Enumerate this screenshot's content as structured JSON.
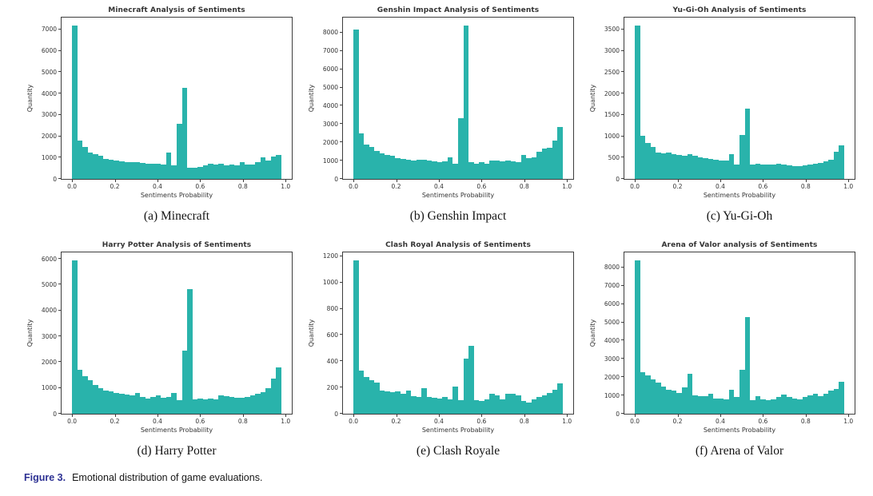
{
  "figure": {
    "caption_label": "Figure 3.",
    "caption_text": "Emotional distribution of game evaluations."
  },
  "colors": {
    "bar": "#29b3ab",
    "spine": "#3d3d3d",
    "caption_label": "#2d3193"
  },
  "chart_data": [
    {
      "type": "bar",
      "title": "Minecraft Analysis of Sentiments",
      "xlabel": "Sentiments Probability",
      "ylabel": "Quantity",
      "caption": "(a) Minecraft",
      "xticks": [
        0.0,
        0.2,
        0.4,
        0.6,
        0.8,
        1.0
      ],
      "yticks": [
        0,
        1000,
        2000,
        3000,
        4000,
        5000,
        6000,
        7000
      ],
      "axis_top": 7560,
      "bin_start": 0.0,
      "bin_width": 0.0245,
      "values": [
        7200,
        1800,
        1500,
        1250,
        1150,
        1100,
        950,
        900,
        850,
        820,
        800,
        780,
        800,
        760,
        720,
        700,
        720,
        680,
        1220,
        620,
        2580,
        4260,
        540,
        520,
        560,
        650,
        700,
        680,
        700,
        620,
        660,
        630,
        800,
        660,
        660,
        800,
        1000,
        860,
        1060,
        1140
      ]
    },
    {
      "type": "bar",
      "title": "Genshin Impact Analysis of Sentiments",
      "xlabel": "Sentiments Probability",
      "ylabel": "Quantity",
      "caption": "(b) Genshin Impact",
      "xticks": [
        0.0,
        0.2,
        0.4,
        0.6,
        0.8,
        1.0
      ],
      "yticks": [
        0,
        1000,
        2000,
        3000,
        4000,
        5000,
        6000,
        7000,
        8000
      ],
      "axis_top": 8820,
      "bin_start": 0.0,
      "bin_width": 0.0245,
      "values": [
        8150,
        2500,
        1900,
        1750,
        1550,
        1400,
        1300,
        1250,
        1150,
        1100,
        1050,
        1000,
        1050,
        1050,
        1000,
        950,
        900,
        950,
        1200,
        850,
        3300,
        8400,
        900,
        850,
        900,
        850,
        1000,
        1000,
        950,
        1000,
        950,
        900,
        1300,
        1150,
        1200,
        1500,
        1650,
        1700,
        2100,
        2850
      ]
    },
    {
      "type": "bar",
      "title": "Yu-Gi-Oh Analysis of Sentiments",
      "xlabel": "Sentiments Probability",
      "ylabel": "Quantity",
      "caption": "(c) Yu-Gi-Oh",
      "xticks": [
        0.0,
        0.2,
        0.4,
        0.6,
        0.8,
        1.0
      ],
      "yticks": [
        0,
        500,
        1000,
        1500,
        2000,
        2500,
        3000,
        3500
      ],
      "axis_top": 3780,
      "bin_start": 0.0,
      "bin_width": 0.0245,
      "values": [
        3600,
        1020,
        850,
        750,
        620,
        600,
        620,
        580,
        560,
        550,
        580,
        540,
        500,
        480,
        460,
        450,
        430,
        440,
        580,
        330,
        1030,
        1650,
        330,
        350,
        330,
        340,
        330,
        360,
        330,
        310,
        300,
        300,
        310,
        340,
        350,
        380,
        420,
        450,
        640,
        780
      ]
    },
    {
      "type": "bar",
      "title": "Harry Potter Analysis of Sentiments",
      "xlabel": "Sentiments Probability",
      "ylabel": "Quantity",
      "caption": "(d) Harry Potter",
      "xticks": [
        0.0,
        0.2,
        0.4,
        0.6,
        0.8,
        1.0
      ],
      "yticks": [
        0,
        1000,
        2000,
        3000,
        4000,
        5000,
        6000
      ],
      "axis_top": 6250,
      "bin_start": 0.0,
      "bin_width": 0.0245,
      "values": [
        5950,
        1700,
        1450,
        1300,
        1100,
        1000,
        900,
        870,
        820,
        760,
        730,
        700,
        820,
        640,
        600,
        660,
        700,
        620,
        640,
        820,
        520,
        2430,
        4820,
        560,
        580,
        560,
        580,
        560,
        720,
        680,
        640,
        620,
        620,
        660,
        700,
        780,
        850,
        1000,
        1350,
        1780
      ]
    },
    {
      "type": "bar",
      "title": "Clash Royal Analysis of Sentiments",
      "xlabel": "Sentiments Probability",
      "ylabel": "Quantity",
      "caption": "(e) Clash Royale",
      "xticks": [
        0.0,
        0.2,
        0.4,
        0.6,
        0.8,
        1.0
      ],
      "yticks": [
        0,
        200,
        400,
        600,
        800,
        1000,
        1200
      ],
      "axis_top": 1230,
      "bin_start": 0.0,
      "bin_width": 0.0245,
      "values": [
        1170,
        330,
        280,
        255,
        240,
        175,
        170,
        165,
        172,
        150,
        175,
        135,
        130,
        195,
        125,
        120,
        115,
        130,
        112,
        205,
        105,
        420,
        520,
        105,
        100,
        112,
        155,
        140,
        112,
        150,
        155,
        140,
        95,
        85,
        110,
        130,
        142,
        160,
        185,
        230
      ]
    },
    {
      "type": "bar",
      "title": "Arena of Valor analysis of Sentiments",
      "xlabel": "Sentiments Probability",
      "ylabel": "Quantity",
      "caption": "(f) Arena of Valor",
      "xticks": [
        0.0,
        0.2,
        0.4,
        0.6,
        0.8,
        1.0
      ],
      "yticks": [
        0,
        1000,
        2000,
        3000,
        4000,
        5000,
        6000,
        7000,
        8000
      ],
      "axis_top": 8820,
      "bin_start": 0.0,
      "bin_width": 0.0245,
      "values": [
        8400,
        2250,
        2100,
        1900,
        1700,
        1500,
        1300,
        1250,
        1150,
        1450,
        2200,
        1000,
        980,
        950,
        1100,
        850,
        820,
        800,
        1300,
        900,
        2400,
        5300,
        750,
        950,
        800,
        750,
        780,
        900,
        1050,
        900,
        820,
        780,
        900,
        1000,
        1100,
        950,
        1100,
        1250,
        1350,
        1750
      ]
    }
  ]
}
